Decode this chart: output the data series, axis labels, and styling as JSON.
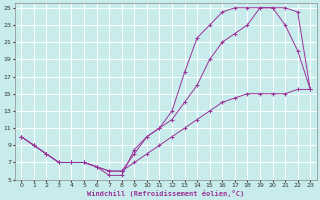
{
  "xlabel": "Windchill (Refroidissement éolien,°C)",
  "bg_color": "#c8ecec",
  "grid_color": "#ffffff",
  "line_color": "#993399",
  "xlim": [
    -0.5,
    23.5
  ],
  "ylim": [
    5,
    25.5
  ],
  "xticks": [
    0,
    1,
    2,
    3,
    4,
    5,
    6,
    7,
    8,
    9,
    10,
    11,
    12,
    13,
    14,
    15,
    16,
    17,
    18,
    19,
    20,
    21,
    22,
    23
  ],
  "yticks": [
    5,
    7,
    9,
    11,
    13,
    15,
    17,
    19,
    21,
    23,
    25
  ],
  "line1_x": [
    0,
    1,
    2,
    3,
    4,
    5,
    6,
    7,
    8,
    9,
    10,
    11,
    12,
    13,
    14,
    15,
    16,
    17,
    18,
    19,
    20,
    21,
    22,
    23
  ],
  "line1_y": [
    10,
    9,
    8,
    7,
    7,
    7,
    6.5,
    6,
    6,
    7,
    8,
    9,
    10,
    11,
    12,
    13,
    14,
    14.5,
    15,
    15,
    15,
    15,
    15.5,
    15.5
  ],
  "line2_x": [
    0,
    1,
    2,
    3,
    4,
    5,
    6,
    7,
    8,
    9,
    10,
    11,
    12,
    13,
    14,
    15,
    16,
    17,
    18,
    19,
    20,
    21,
    22,
    23
  ],
  "line2_y": [
    10,
    9,
    8,
    7,
    7,
    7,
    6.5,
    6,
    6,
    8,
    10,
    11,
    12,
    14,
    16,
    19,
    21,
    22,
    23,
    25,
    25,
    25,
    24.5,
    15.5
  ],
  "line3_x": [
    0,
    1,
    2,
    3,
    4,
    5,
    6,
    7,
    8,
    9,
    10,
    11,
    12,
    13,
    14,
    15,
    16,
    17,
    18,
    19,
    20,
    21,
    22,
    23
  ],
  "line3_y": [
    10,
    9,
    8,
    7,
    7,
    7,
    6.5,
    5.5,
    5.5,
    8.5,
    10,
    11,
    13,
    17.5,
    21.5,
    23,
    24.5,
    25,
    25,
    25,
    25,
    23,
    20,
    15.5
  ]
}
